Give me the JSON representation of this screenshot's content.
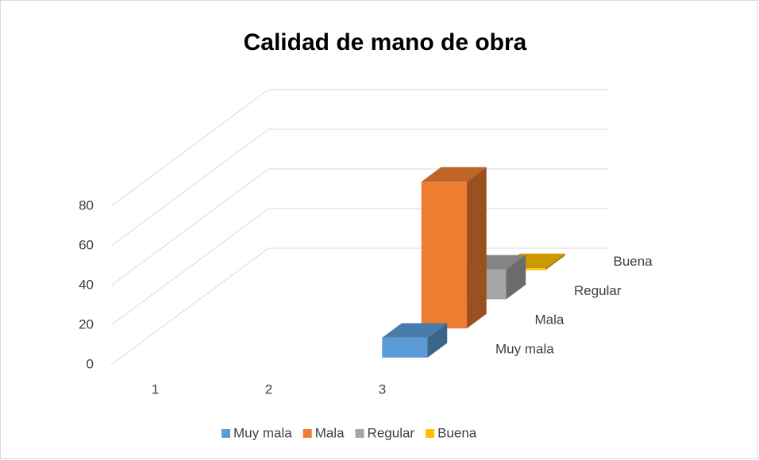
{
  "chart_data": {
    "type": "bar3d",
    "title": "Calidad de mano de obra",
    "categories": [
      "1",
      "2",
      "3"
    ],
    "series": [
      {
        "name": "Muy mala",
        "color": "#5b9bd5",
        "values": [
          null,
          null,
          10
        ]
      },
      {
        "name": "Mala",
        "color": "#ed7d31",
        "values": [
          null,
          null,
          74
        ]
      },
      {
        "name": "Regular",
        "color": "#a5a5a5",
        "values": [
          null,
          null,
          15
        ]
      },
      {
        "name": "Buena",
        "color": "#ffc000",
        "values": [
          null,
          null,
          1
        ]
      }
    ],
    "ylim": [
      0,
      80
    ],
    "yticks": [
      0,
      20,
      40,
      60,
      80
    ],
    "grid": true,
    "legend": "bottom"
  }
}
